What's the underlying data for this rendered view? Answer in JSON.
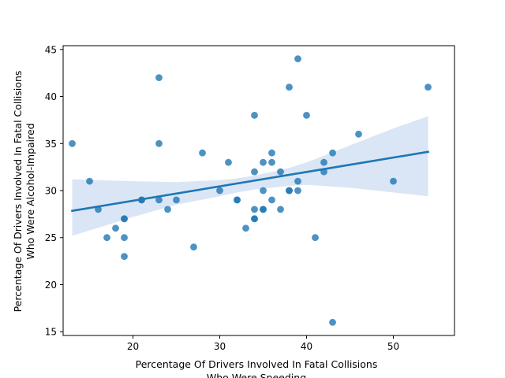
{
  "chart_data": {
    "type": "scatter",
    "title": "",
    "xlabel_lines": [
      "Percentage Of Drivers Involved In Fatal Collisions",
      "Who Were Speeding"
    ],
    "ylabel_lines": [
      "Percentage Of Drivers Involved In Fatal Collisions",
      "Who Were Alcohol-Impaired"
    ],
    "xlim": [
      11.95,
      57.05
    ],
    "ylim": [
      14.6,
      45.4
    ],
    "xticks": [
      20,
      30,
      40,
      50
    ],
    "yticks": [
      15,
      20,
      25,
      30,
      35,
      40,
      45
    ],
    "grid": false,
    "colors": {
      "points": "#1f77b4",
      "line": "#1f77b4",
      "band": "#aec7e8",
      "axes": "#000000"
    },
    "series": [
      {
        "name": "observations",
        "x": [
          13,
          15,
          16,
          17,
          18,
          19,
          19,
          19,
          19,
          21,
          21,
          23,
          23,
          23,
          24,
          25,
          27,
          28,
          30,
          31,
          32,
          32,
          33,
          34,
          34,
          34,
          34,
          34,
          35,
          35,
          35,
          35,
          36,
          36,
          36,
          37,
          37,
          38,
          38,
          38,
          39,
          39,
          39,
          40,
          41,
          42,
          42,
          43,
          43,
          46,
          50,
          54
        ],
        "y": [
          35,
          31,
          28,
          25,
          26,
          27,
          27,
          25,
          23,
          29,
          29,
          42,
          35,
          29,
          28,
          29,
          24,
          34,
          30,
          33,
          29,
          29,
          26,
          38,
          32,
          28,
          27,
          27,
          33,
          30,
          28,
          28,
          34,
          33,
          29,
          32,
          28,
          41,
          30,
          30,
          44,
          31,
          30,
          38,
          25,
          33,
          32,
          34,
          16,
          36,
          31,
          41
        ]
      }
    ],
    "regression": {
      "x": [
        13,
        54
      ],
      "y": [
        27.85,
        34.12
      ]
    },
    "confidence_band": {
      "x": [
        13,
        20,
        25,
        30,
        32,
        34,
        36,
        38,
        40,
        45,
        50,
        54
      ],
      "upper": [
        31.2,
        31.0,
        30.9,
        31.1,
        31.3,
        31.6,
        32.0,
        32.4,
        33.0,
        34.8,
        36.6,
        37.9
      ],
      "lower": [
        25.2,
        27.2,
        28.5,
        29.4,
        29.8,
        30.1,
        30.3,
        30.5,
        30.6,
        30.3,
        29.8,
        29.4
      ]
    }
  }
}
